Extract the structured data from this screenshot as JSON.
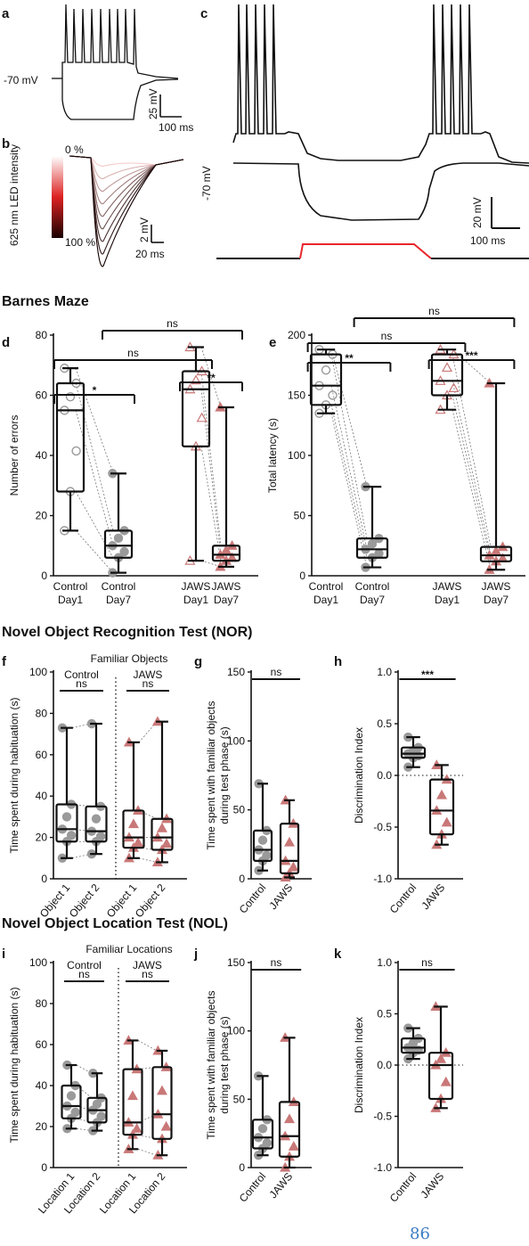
{
  "panels": {
    "a": "a",
    "b": "b",
    "c": "c",
    "d": "d",
    "e": "e",
    "f": "f",
    "g": "g",
    "h": "h",
    "i": "i",
    "j": "j",
    "k": "k"
  },
  "traces": {
    "a_voltage": "-70 mV",
    "a_scale_v": "25 mV",
    "a_scale_t": "100 ms",
    "b_legend_top": "0 %",
    "b_legend_label": "625 nm LED intensity",
    "b_legend_bottom": "100 %",
    "b_scale_v": "2 mV",
    "b_scale_t": "20 ms",
    "c_voltage": "-70 mV",
    "c_scale_v": "20 mV",
    "c_scale_t": "100 ms",
    "led_color": "#e8262b"
  },
  "sections": {
    "barnes": "Barnes Maze",
    "nor": "Novel Object Recognition Test (NOR)",
    "nol": "Novel Object Location Test (NOL)"
  },
  "page_number": "86",
  "colors": {
    "control": "#9a9a9a",
    "jaws": "#c97878"
  },
  "chart_data": [
    {
      "id": "d",
      "type": "box",
      "categories": [
        "Control Day1",
        "Control Day7",
        "JAWS Day1",
        "JAWS Day7"
      ],
      "ylabel": "Number of errors",
      "ylim": [
        0,
        80
      ],
      "yticks": [
        0,
        20,
        40,
        60,
        80
      ],
      "boxes": [
        {
          "min": 15,
          "q1": 28,
          "median": 55,
          "q3": 64,
          "max": 69
        },
        {
          "min": 1,
          "q1": 6,
          "median": 10,
          "q3": 15,
          "max": 34
        },
        {
          "min": 5,
          "q1": 43,
          "median": 62,
          "q3": 68,
          "max": 76
        },
        {
          "min": 3,
          "q1": 5,
          "median": 7,
          "q3": 10,
          "max": 56
        }
      ],
      "significance": [
        {
          "a": 0,
          "b": 1,
          "label": "*"
        },
        {
          "a": 2,
          "b": 3,
          "label": "**"
        },
        {
          "a": 0,
          "b": 2,
          "label": "ns"
        },
        {
          "a": 1,
          "b": 3,
          "label": "ns"
        }
      ]
    },
    {
      "id": "e",
      "type": "box",
      "categories": [
        "Control Day1",
        "Control Day7",
        "JAWS Day1",
        "JAWS Day7"
      ],
      "ylabel": "Total latency (s)",
      "ylim": [
        0,
        200
      ],
      "yticks": [
        0,
        50,
        100,
        150,
        200
      ],
      "boxes": [
        {
          "min": 135,
          "q1": 142,
          "median": 158,
          "q3": 184,
          "max": 188
        },
        {
          "min": 7,
          "q1": 15,
          "median": 22,
          "q3": 31,
          "max": 74
        },
        {
          "min": 138,
          "q1": 150,
          "median": 162,
          "q3": 184,
          "max": 188
        },
        {
          "min": 5,
          "q1": 12,
          "median": 17,
          "q3": 24,
          "max": 160
        }
      ],
      "significance": [
        {
          "a": 0,
          "b": 1,
          "label": "**"
        },
        {
          "a": 2,
          "b": 3,
          "label": "***"
        },
        {
          "a": 0,
          "b": 2,
          "label": "ns"
        },
        {
          "a": 1,
          "b": 3,
          "label": "ns"
        }
      ]
    },
    {
      "id": "f",
      "type": "box",
      "title": "Familiar Objects",
      "group_labels": [
        "Control",
        "JAWS"
      ],
      "categories": [
        "Object 1",
        "Object 2",
        "Object 1",
        "Object 2"
      ],
      "ylabel": "Time spent during habituation  (s)",
      "ylim": [
        0,
        100
      ],
      "yticks": [
        0,
        20,
        40,
        60,
        80,
        100
      ],
      "boxes": [
        {
          "min": 10,
          "q1": 18,
          "median": 24,
          "q3": 36,
          "max": 73
        },
        {
          "min": 12,
          "q1": 18,
          "median": 23,
          "q3": 35,
          "max": 75
        },
        {
          "min": 10,
          "q1": 15,
          "median": 20,
          "q3": 33,
          "max": 66
        },
        {
          "min": 8,
          "q1": 14,
          "median": 20,
          "q3": 29,
          "max": 76
        }
      ],
      "significance": [
        {
          "a": 0,
          "b": 1,
          "label": "ns"
        },
        {
          "a": 2,
          "b": 3,
          "label": "ns"
        }
      ]
    },
    {
      "id": "g",
      "type": "box",
      "categories": [
        "Control",
        "JAWS"
      ],
      "ylabel": "Time spent with familiar objects during test phase (s)",
      "ylim": [
        0,
        150
      ],
      "yticks": [
        0,
        50,
        100,
        150
      ],
      "boxes": [
        {
          "min": 6,
          "q1": 13,
          "median": 21,
          "q3": 35,
          "max": 69
        },
        {
          "min": 1,
          "q1": 4,
          "median": 13,
          "q3": 40,
          "max": 57
        }
      ],
      "significance": [
        {
          "a": 0,
          "b": 1,
          "label": "ns"
        }
      ]
    },
    {
      "id": "h",
      "type": "box",
      "categories": [
        "Control",
        "JAWS"
      ],
      "ylabel": "Discrimination Index",
      "ylim": [
        -1.0,
        1.0
      ],
      "yticks": [
        -1.0,
        -0.5,
        0.0,
        0.5,
        1.0
      ],
      "ytick_labels": [
        "-1.0",
        "-0.5",
        "0.0",
        "0.5",
        "1.0"
      ],
      "refline": 0,
      "boxes": [
        {
          "min": 0.08,
          "q1": 0.17,
          "median": 0.21,
          "q3": 0.27,
          "max": 0.37
        },
        {
          "min": -0.67,
          "q1": -0.57,
          "median": -0.34,
          "q3": -0.04,
          "max": 0.1
        }
      ],
      "significance": [
        {
          "a": 0,
          "b": 1,
          "label": "***"
        }
      ]
    },
    {
      "id": "i",
      "type": "box",
      "title": "Familiar Locations",
      "group_labels": [
        "Control",
        "JAWS"
      ],
      "categories": [
        "Location 1",
        "Location 2",
        "Location 1",
        "Location 2"
      ],
      "ylabel": "Time spent during habituation  (s)",
      "ylim": [
        0,
        100
      ],
      "yticks": [
        0,
        20,
        40,
        60,
        80,
        100
      ],
      "boxes": [
        {
          "min": 19,
          "q1": 24,
          "median": 30,
          "q3": 40,
          "max": 50
        },
        {
          "min": 18,
          "q1": 22,
          "median": 28,
          "q3": 34,
          "max": 46
        },
        {
          "min": 9,
          "q1": 16,
          "median": 22,
          "q3": 48,
          "max": 62
        },
        {
          "min": 6,
          "q1": 14,
          "median": 26,
          "q3": 49,
          "max": 57
        }
      ],
      "significance": [
        {
          "a": 0,
          "b": 1,
          "label": "ns"
        },
        {
          "a": 2,
          "b": 3,
          "label": "ns"
        }
      ]
    },
    {
      "id": "j",
      "type": "box",
      "categories": [
        "Control",
        "JAWS"
      ],
      "ylabel": "Time spent with familiar objects during test phase (s)",
      "ylim": [
        0,
        150
      ],
      "yticks": [
        0,
        50,
        100,
        150
      ],
      "boxes": [
        {
          "min": 9,
          "q1": 14,
          "median": 22,
          "q3": 35,
          "max": 67
        },
        {
          "min": 0,
          "q1": 8,
          "median": 23,
          "q3": 48,
          "max": 95
        }
      ],
      "significance": [
        {
          "a": 0,
          "b": 1,
          "label": "ns"
        }
      ]
    },
    {
      "id": "k",
      "type": "box",
      "categories": [
        "Control",
        "JAWS"
      ],
      "ylabel": "Discrimination Index",
      "ylim": [
        -1.0,
        1.0
      ],
      "yticks": [
        -1.0,
        -0.5,
        0.0,
        0.5,
        1.0
      ],
      "ytick_labels": [
        "-1.0",
        "-0.5",
        "0.0",
        "0.5",
        "1.0"
      ],
      "refline": 0,
      "boxes": [
        {
          "min": 0.06,
          "q1": 0.12,
          "median": 0.17,
          "q3": 0.26,
          "max": 0.36
        },
        {
          "min": -0.42,
          "q1": -0.33,
          "median": 0.0,
          "q3": 0.12,
          "max": 0.57
        }
      ],
      "significance": [
        {
          "a": 0,
          "b": 1,
          "label": "ns"
        }
      ]
    }
  ]
}
